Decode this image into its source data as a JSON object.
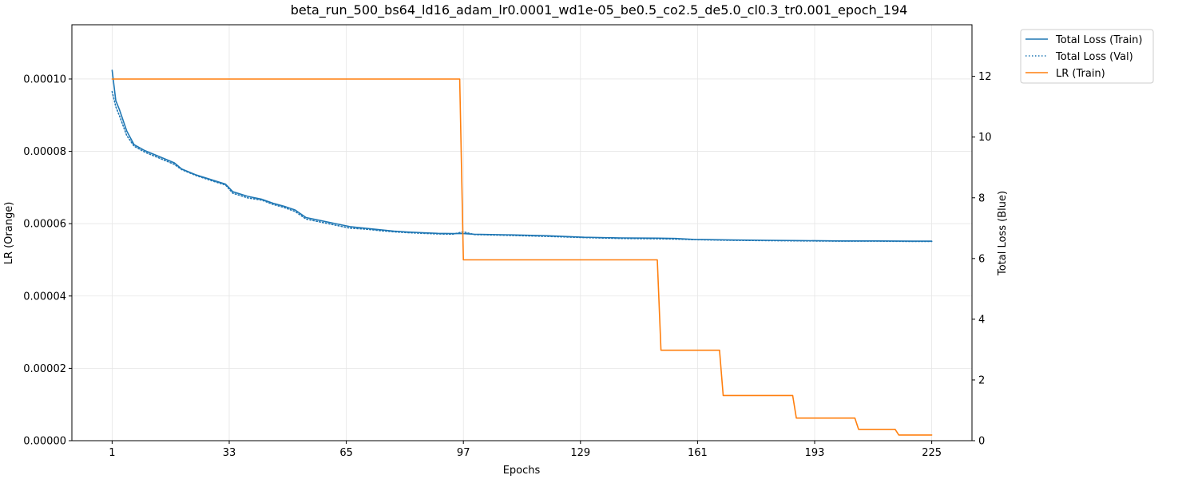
{
  "chart_data": {
    "type": "line",
    "title": "beta_run_500_bs64_ld16_adam_lr0.0001_wd1e-05_be0.5_co2.5_de5.0_cl0.3_tr0.001_epoch_194",
    "xlabel": "Epochs",
    "ylabel_left": "LR (Orange)",
    "ylabel_right": "Total Loss (Blue)",
    "xlim": [
      -10,
      236
    ],
    "ylim_left": [
      0,
      0.000115
    ],
    "ylim_right": [
      0,
      13.7
    ],
    "x_ticks": [
      1,
      33,
      65,
      97,
      129,
      161,
      193,
      225
    ],
    "y_ticks_left": [
      "0.00000",
      "0.00002",
      "0.00004",
      "0.00006",
      "0.00008",
      "0.00010"
    ],
    "y_ticks_left_values": [
      0,
      2e-05,
      4e-05,
      6e-05,
      8e-05,
      0.0001
    ],
    "y_ticks_right": [
      0,
      2,
      4,
      6,
      8,
      10,
      12
    ],
    "grid": true,
    "legend_position": "outside-top-right",
    "colors": {
      "blue": "#1f77b4",
      "orange": "#ff7f0e",
      "grid": "#e6e6e6"
    },
    "series": [
      {
        "name": "Total Loss (Train)",
        "axis": "right",
        "style": "solid",
        "color": "#1f77b4",
        "x": [
          1,
          2,
          3,
          5,
          7,
          10,
          14,
          18,
          20,
          24,
          28,
          32,
          34,
          38,
          42,
          45,
          48,
          51,
          54,
          58,
          62,
          66,
          70,
          74,
          78,
          82,
          86,
          90,
          94,
          97,
          100,
          110,
          120,
          130,
          140,
          150,
          155,
          160,
          170,
          180,
          190,
          200,
          210,
          220,
          225
        ],
        "y": [
          12.2,
          11.2,
          10.9,
          10.2,
          9.75,
          9.55,
          9.35,
          9.15,
          8.95,
          8.75,
          8.6,
          8.45,
          8.2,
          8.05,
          7.95,
          7.82,
          7.72,
          7.6,
          7.35,
          7.25,
          7.15,
          7.05,
          7.0,
          6.95,
          6.9,
          6.87,
          6.85,
          6.83,
          6.82,
          6.82,
          6.8,
          6.78,
          6.75,
          6.7,
          6.68,
          6.67,
          6.66,
          6.63,
          6.61,
          6.6,
          6.59,
          6.58,
          6.58,
          6.57,
          6.57
        ]
      },
      {
        "name": "Total Loss (Val)",
        "axis": "right",
        "style": "dotted",
        "color": "#1f77b4",
        "x": [
          1,
          2,
          3,
          5,
          7,
          10,
          14,
          18,
          20,
          24,
          28,
          32,
          34,
          38,
          42,
          45,
          48,
          51,
          54,
          58,
          62,
          66,
          70,
          74,
          78,
          82,
          86,
          90,
          94,
          97,
          100,
          110,
          120,
          130,
          140,
          150,
          155,
          160,
          170,
          180,
          190,
          200,
          210,
          220,
          225
        ],
        "y": [
          11.5,
          11.0,
          10.7,
          10.05,
          9.7,
          9.5,
          9.3,
          9.1,
          8.93,
          8.73,
          8.57,
          8.42,
          8.15,
          8.0,
          7.92,
          7.78,
          7.68,
          7.55,
          7.3,
          7.2,
          7.1,
          7.0,
          6.97,
          6.92,
          6.88,
          6.85,
          6.83,
          6.81,
          6.8,
          6.88,
          6.79,
          6.76,
          6.73,
          6.69,
          6.66,
          6.65,
          6.64,
          6.62,
          6.6,
          6.59,
          6.58,
          6.57,
          6.57,
          6.56,
          6.56
        ]
      },
      {
        "name": "LR (Train)",
        "axis": "left",
        "style": "solid",
        "color": "#ff7f0e",
        "x": [
          1,
          96,
          97,
          150,
          151,
          167,
          168,
          187,
          188,
          204,
          205,
          215,
          216,
          225
        ],
        "y": [
          0.0001,
          0.0001,
          5e-05,
          5e-05,
          2.5e-05,
          2.5e-05,
          1.25e-05,
          1.25e-05,
          6.25e-06,
          6.25e-06,
          3.125e-06,
          3.125e-06,
          1.5625e-06,
          1.5625e-06
        ]
      }
    ]
  }
}
